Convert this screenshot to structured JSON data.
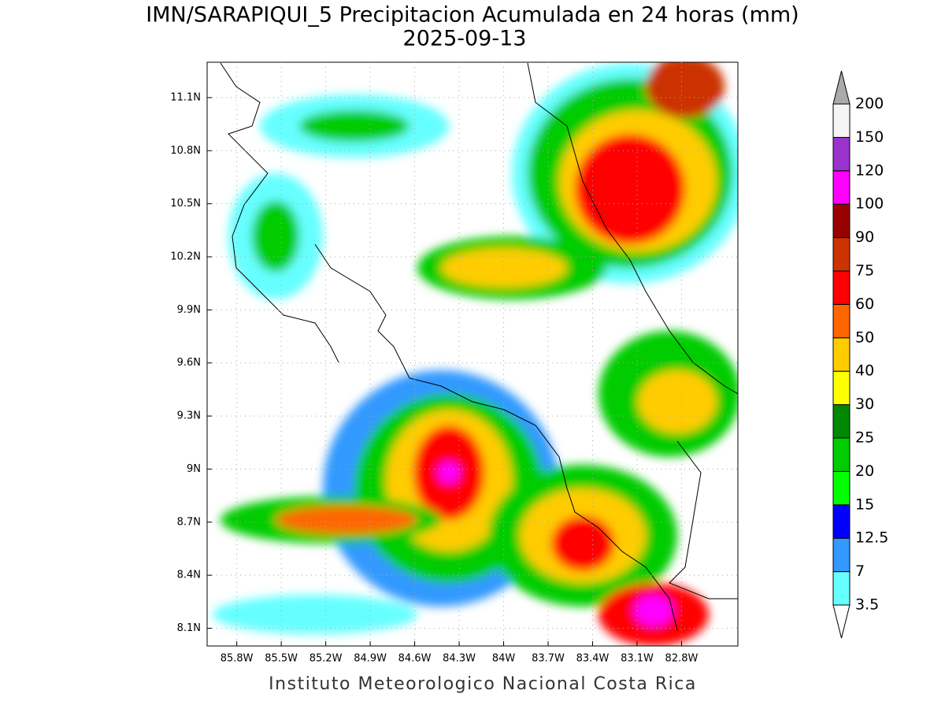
{
  "map": {
    "title": "IMN/SARAPIQUI_5 Precipitacion Acumulada en 24 horas (mm)",
    "subtitle": "2025-09-13",
    "footer": "Instituto Meteorologico Nacional Costa Rica",
    "lonlim": [
      -86.0,
      -82.42
    ],
    "latlim": [
      8.0,
      11.3
    ],
    "xticks": [
      {
        "value": -85.8,
        "label": "85.8W"
      },
      {
        "value": -85.5,
        "label": "85.5W"
      },
      {
        "value": -85.2,
        "label": "85.2W"
      },
      {
        "value": -84.9,
        "label": "84.9W"
      },
      {
        "value": -84.6,
        "label": "84.6W"
      },
      {
        "value": -84.3,
        "label": "84.3W"
      },
      {
        "value": -84.0,
        "label": "84W"
      },
      {
        "value": -83.7,
        "label": "83.7W"
      },
      {
        "value": -83.4,
        "label": "83.4W"
      },
      {
        "value": -83.1,
        "label": "83.1W"
      },
      {
        "value": -82.8,
        "label": "82.8W"
      }
    ],
    "yticks": [
      {
        "value": 8.1,
        "label": "8.1N"
      },
      {
        "value": 8.4,
        "label": "8.4N"
      },
      {
        "value": 8.7,
        "label": "8.7N"
      },
      {
        "value": 9.0,
        "label": "9N"
      },
      {
        "value": 9.3,
        "label": "9.3N"
      },
      {
        "value": 9.6,
        "label": "9.6N"
      },
      {
        "value": 9.9,
        "label": "9.9N"
      },
      {
        "value": 10.2,
        "label": "10.2N"
      },
      {
        "value": 10.5,
        "label": "10.5N"
      },
      {
        "value": 10.8,
        "label": "10.8N"
      },
      {
        "value": 11.1,
        "label": "11.1N"
      }
    ],
    "colorbar": {
      "levels": [
        3.5,
        7,
        12.5,
        15,
        20,
        25,
        30,
        40,
        50,
        60,
        75,
        90,
        100,
        120,
        150,
        200
      ],
      "colors": [
        "#ffffff",
        "#66ffff",
        "#3399ff",
        "#0000ff",
        "#00ff00",
        "#00cc00",
        "#008800",
        "#ffff00",
        "#ffcc00",
        "#ff6600",
        "#ff0000",
        "#cc3300",
        "#990000",
        "#ff00ff",
        "#9933cc",
        "#f5f5f5",
        "#aaaaaa"
      ]
    }
  }
}
